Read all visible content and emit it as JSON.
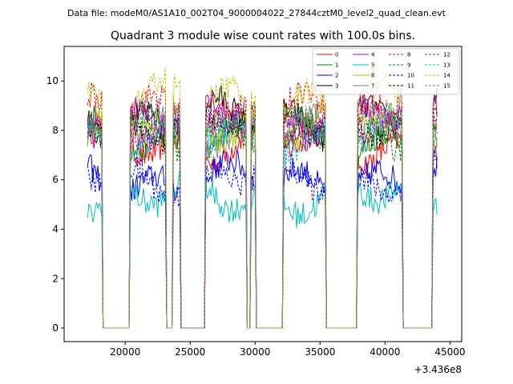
{
  "chart_data": {
    "type": "line",
    "suptitle": "Data file: modeM0/AS1A10_002T04_9000004022_27844cztM0_level2_quad_clean.evt",
    "title": "Quadrant 3 module wise count rates with 100.0s bins.",
    "xlabel": "",
    "ylabel": "",
    "x_offset_label": "+3.436e8",
    "xlim": [
      15300,
      45900
    ],
    "ylim": [
      -0.55,
      11.4
    ],
    "xticks": [
      20000,
      25000,
      30000,
      35000,
      40000,
      45000
    ],
    "xtick_labels": [
      "20000",
      "25000",
      "30000",
      "35000",
      "40000",
      "45000"
    ],
    "yticks": [
      0,
      2,
      4,
      6,
      8,
      10
    ],
    "ytick_labels": [
      "0",
      "2",
      "4",
      "6",
      "8",
      "10"
    ],
    "legend_position": "top-right",
    "active_windows": [
      [
        17100,
        18200
      ],
      [
        20400,
        23100
      ],
      [
        23700,
        24200
      ],
      [
        26200,
        29300
      ],
      [
        29700,
        30000
      ],
      [
        32200,
        35400
      ],
      [
        37900,
        41300
      ],
      [
        43700,
        44000
      ]
    ],
    "series": [
      {
        "name": "0",
        "color": "#ff0000",
        "dash": "solid",
        "level": 7.4
      },
      {
        "name": "1",
        "color": "#008000",
        "dash": "solid",
        "level": 7.7
      },
      {
        "name": "2",
        "color": "#0000ff",
        "dash": "solid",
        "level": 6.0
      },
      {
        "name": "3",
        "color": "#000000",
        "dash": "solid",
        "level": 8.5
      },
      {
        "name": "4",
        "color": "#bf00bf",
        "dash": "solid",
        "level": 8.6
      },
      {
        "name": "5",
        "color": "#00bfbf",
        "dash": "solid",
        "level": 5.3
      },
      {
        "name": "6",
        "color": "#bfbf00",
        "dash": "solid",
        "level": 8.2
      },
      {
        "name": "7",
        "color": "#808080",
        "dash": "solid",
        "level": 7.9
      },
      {
        "name": "8",
        "color": "#ff0000",
        "dash": "dashed",
        "level": 8.8
      },
      {
        "name": "9",
        "color": "#008000",
        "dash": "dashed",
        "level": 8.0
      },
      {
        "name": "10",
        "color": "#0000ff",
        "dash": "dashed",
        "level": 6.1
      },
      {
        "name": "11",
        "color": "#000000",
        "dash": "dashed",
        "level": 8.3
      },
      {
        "name": "12",
        "color": "#bf00bf",
        "dash": "dashed",
        "level": 8.4
      },
      {
        "name": "13",
        "color": "#00bfbf",
        "dash": "dashed",
        "level": 7.8
      },
      {
        "name": "14",
        "color": "#bfbf00",
        "dash": "dashed",
        "level": 9.3
      },
      {
        "name": "15",
        "color": "#808080",
        "dash": "dashed",
        "level": 8.1
      }
    ]
  }
}
